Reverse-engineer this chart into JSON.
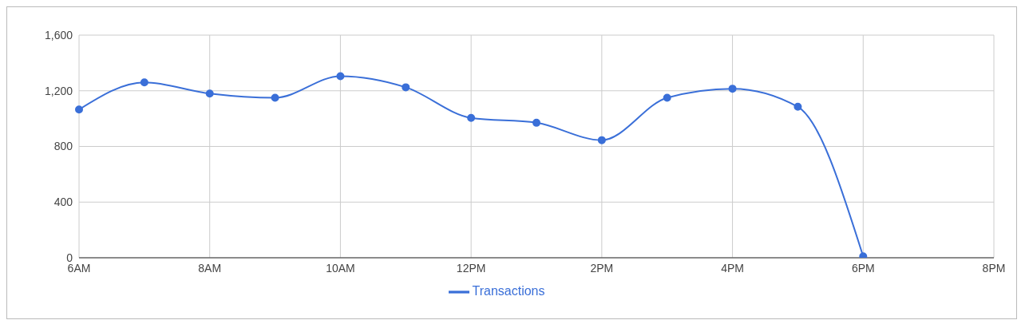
{
  "chart_data": {
    "type": "line",
    "categories": [
      "6AM",
      null,
      "8AM",
      null,
      "10AM",
      null,
      "12PM",
      null,
      "2PM",
      null,
      "4PM",
      null,
      "6PM",
      null,
      "8PM"
    ],
    "series": [
      {
        "name": "Transactions",
        "color": "#3a6fd8",
        "values": [
          1065,
          1260,
          1180,
          1150,
          1305,
          1225,
          1005,
          970,
          845,
          1150,
          1215,
          1085,
          10,
          null,
          null
        ]
      }
    ],
    "ylim": [
      0,
      1600
    ],
    "yticks": [
      {
        "value": 0,
        "label": "0"
      },
      {
        "value": 400,
        "label": "400"
      },
      {
        "value": 800,
        "label": "800"
      },
      {
        "value": 1200,
        "label": "1,200"
      },
      {
        "value": 1600,
        "label": "1,600"
      }
    ],
    "grid": true,
    "legend": "bottom",
    "marker": "circle"
  }
}
